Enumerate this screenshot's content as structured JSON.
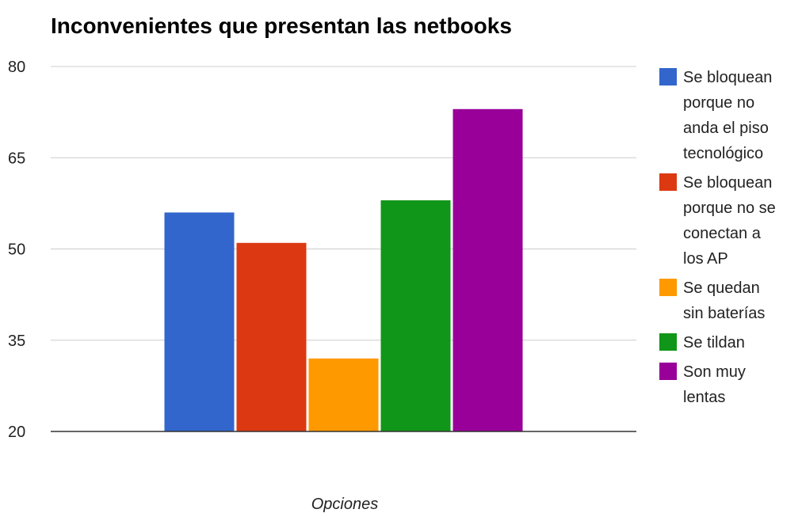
{
  "chart_data": {
    "type": "bar",
    "title": "Inconvenientes que presentan las netbooks",
    "xlabel": "Opciones",
    "ylabel": "",
    "ylim": [
      20,
      80
    ],
    "yticks": [
      20,
      35,
      50,
      65,
      80
    ],
    "grid": true,
    "legend_position": "right",
    "series": [
      {
        "name": "Se bloquean porque no anda el piso tecnológico",
        "values": [
          56
        ],
        "color": "#3366cc",
        "legend_lines": [
          "Se bloquean",
          "porque no",
          "anda el piso",
          "tecnológico"
        ]
      },
      {
        "name": "Se bloquean porque no se conectan a los AP",
        "values": [
          51
        ],
        "color": "#dc3912",
        "legend_lines": [
          "Se bloquean",
          "porque no se",
          "conectan a",
          "los AP"
        ]
      },
      {
        "name": "Se quedan sin baterías",
        "values": [
          32
        ],
        "color": "#ff9900",
        "legend_lines": [
          "Se quedan",
          "sin baterías"
        ]
      },
      {
        "name": "Se tildan",
        "values": [
          58
        ],
        "color": "#109618",
        "legend_lines": [
          "Se tildan"
        ]
      },
      {
        "name": "Son muy lentas",
        "values": [
          73
        ],
        "color": "#990099",
        "legend_lines": [
          "Son muy",
          "lentas"
        ]
      }
    ]
  }
}
